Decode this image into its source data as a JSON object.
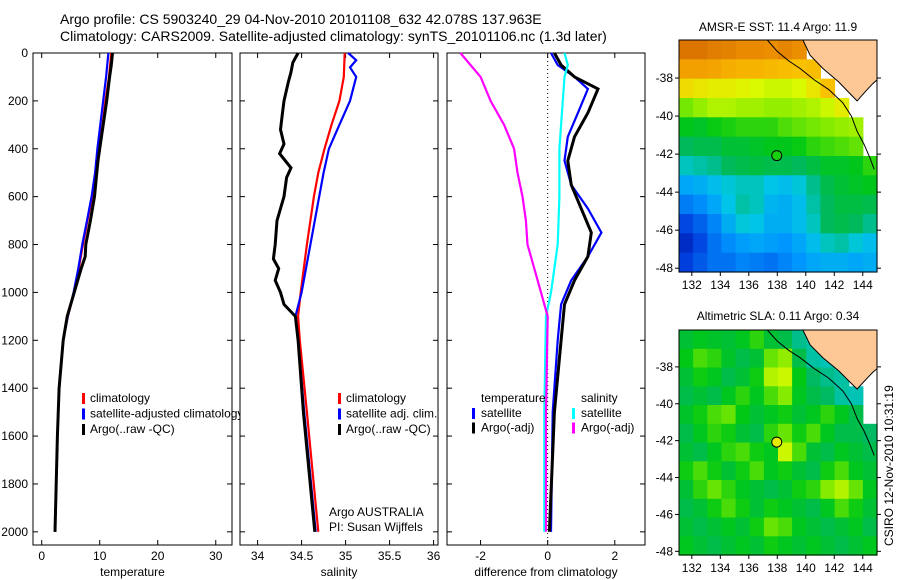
{
  "title_line1": "Argo profile: CS 5903240_29 04-Nov-2010 20101108_632 42.078S 137.963E",
  "title_line2": "Climatology: CARS2009. Satellite-adjusted climatology: synTS_20101106.nc (1.3d later)",
  "footer_stamp": "CSIRO 12-Nov-2010 10:31:19",
  "credit_line1": "Argo AUSTRALIA",
  "credit_line2": "PI: Susan Wijffels",
  "colors": {
    "climatology": "#ff0000",
    "satellite": "#0000ff",
    "argo": "#000000",
    "sal_satellite": "#00ffff",
    "sal_argo": "#ff00ff",
    "land": "#fdc896"
  },
  "chart_data": [
    {
      "type": "line",
      "xlabel": "temperature",
      "xlim": [
        -1.5,
        32.8
      ],
      "ylim": [
        0,
        2055
      ],
      "xticks": [
        0,
        10,
        20,
        30
      ],
      "yticks": [
        0,
        200,
        400,
        600,
        800,
        1000,
        1200,
        1400,
        1600,
        1800,
        2000
      ],
      "legend": {
        "placement": "lower-left",
        "entries": [
          "climatology",
          "satellite-adjusted climatology",
          "Argo(..raw -QC)"
        ]
      },
      "series": [
        {
          "name": "climatology",
          "color": "#ff0000",
          "depth": [
            0,
            100,
            200,
            300,
            400,
            500,
            600,
            700,
            800,
            900,
            1000,
            1100,
            1200,
            1400,
            1600,
            1800,
            2000
          ],
          "values": [
            12.0,
            11.6,
            11.0,
            10.5,
            9.9,
            9.3,
            8.7,
            7.9,
            7.1,
            6.4,
            5.6,
            4.5,
            3.7,
            3.0,
            2.7,
            2.5,
            2.3
          ]
        },
        {
          "name": "satellite-adjusted climatology",
          "color": "#0000ff",
          "depth": [
            0,
            100,
            200,
            300,
            400,
            500,
            600,
            700,
            800,
            900,
            1000,
            1100,
            1200,
            1400,
            1600,
            1800,
            2000
          ],
          "values": [
            11.5,
            11.1,
            10.6,
            10.1,
            9.6,
            9.2,
            8.6,
            7.8,
            7.0,
            6.3,
            5.5,
            4.5,
            3.7,
            3.0,
            2.7,
            2.5,
            2.3
          ]
        },
        {
          "name": "Argo(..raw -QC)",
          "color": "#000000",
          "depth": [
            0,
            50,
            100,
            200,
            300,
            400,
            450,
            500,
            600,
            700,
            800,
            850,
            900,
            1000,
            1100,
            1200,
            1400,
            1600,
            1800,
            2000
          ],
          "values": [
            12.2,
            12.0,
            11.7,
            11.2,
            10.6,
            10.0,
            9.7,
            9.5,
            9.1,
            8.4,
            7.6,
            7.5,
            6.8,
            5.6,
            4.4,
            3.7,
            3.0,
            2.7,
            2.5,
            2.3
          ]
        }
      ]
    },
    {
      "type": "line",
      "xlabel": "salinity",
      "xlim": [
        33.8,
        36.05
      ],
      "ylim": [
        0,
        2055
      ],
      "xticks": [
        34,
        34.5,
        35,
        35.5,
        36
      ],
      "legend": {
        "placement": "lower-right",
        "entries": [
          "climatology",
          "satellite adj. clim.",
          "Argo(..raw -QC)"
        ]
      },
      "series": [
        {
          "name": "climatology",
          "color": "#ff0000",
          "depth": [
            0,
            100,
            200,
            300,
            400,
            500,
            600,
            700,
            800,
            1000,
            1100,
            1200,
            1500,
            2000
          ],
          "values": [
            34.99,
            34.98,
            34.93,
            34.84,
            34.76,
            34.69,
            34.64,
            34.6,
            34.56,
            34.49,
            34.46,
            34.48,
            34.56,
            34.69
          ]
        },
        {
          "name": "satellite adj. clim.",
          "color": "#0000ff",
          "depth": [
            0,
            30,
            60,
            100,
            200,
            300,
            400,
            500,
            600,
            800,
            1000,
            1100,
            1200,
            1500,
            2000
          ],
          "values": [
            35.03,
            35.12,
            35.05,
            35.12,
            35.05,
            34.93,
            34.81,
            34.75,
            34.7,
            34.6,
            34.5,
            34.43,
            34.46,
            34.53,
            34.66
          ]
        },
        {
          "name": "Argo(..raw -QC)",
          "color": "#000000",
          "depth": [
            0,
            40,
            80,
            120,
            200,
            260,
            320,
            380,
            420,
            480,
            520,
            600,
            700,
            800,
            860,
            900,
            950,
            1000,
            1050,
            1100,
            1200,
            1500,
            2000
          ],
          "values": [
            34.46,
            34.4,
            34.38,
            34.35,
            34.3,
            34.28,
            34.26,
            34.3,
            34.25,
            34.38,
            34.33,
            34.3,
            34.22,
            34.2,
            34.18,
            34.24,
            34.2,
            34.26,
            34.3,
            34.43,
            34.46,
            34.52,
            34.65
          ]
        }
      ]
    },
    {
      "type": "line",
      "xlabel": "difference from climatology",
      "xlim": [
        -3,
        2.9
      ],
      "ylim": [
        0,
        2055
      ],
      "xticks": [
        -2,
        0,
        2
      ],
      "legend": {
        "placement": "lower-center",
        "headers": [
          "temperature",
          "salinity"
        ],
        "entries": [
          "satellite",
          "Argo(-adj)",
          "satellite",
          "Argo(-adj)"
        ]
      },
      "series": [
        {
          "name": "temperature satellite",
          "color": "#0000ff",
          "depth": [
            0,
            50,
            100,
            150,
            250,
            350,
            450,
            550,
            650,
            750,
            850,
            950,
            1050,
            1200,
            1500,
            2000
          ],
          "values": [
            0.1,
            0.3,
            0.8,
            1.2,
            0.9,
            0.6,
            0.5,
            0.7,
            1.2,
            1.6,
            1.2,
            0.7,
            0.4,
            0.3,
            0.15,
            0.1
          ]
        },
        {
          "name": "temperature Argo(-adj)",
          "color": "#000000",
          "depth": [
            0,
            50,
            100,
            150,
            250,
            350,
            450,
            550,
            650,
            750,
            850,
            950,
            1050,
            1200,
            1500,
            2000
          ],
          "values": [
            0.2,
            0.4,
            0.8,
            1.5,
            1.2,
            0.8,
            0.6,
            0.7,
            1.0,
            1.3,
            1.2,
            0.8,
            0.5,
            0.4,
            0.2,
            0.05
          ]
        },
        {
          "name": "salinity satellite",
          "color": "#00ffff",
          "depth": [
            0,
            50,
            100,
            200,
            300,
            400,
            600,
            800,
            1000,
            1100,
            1500,
            2000
          ],
          "values": [
            0.5,
            0.6,
            0.5,
            0.45,
            0.4,
            0.35,
            0.35,
            0.3,
            0.1,
            -0.05,
            -0.1,
            -0.1
          ]
        },
        {
          "name": "salinity Argo(-adj)",
          "color": "#ff00ff",
          "depth": [
            0,
            50,
            100,
            200,
            300,
            400,
            500,
            600,
            700,
            800,
            900,
            1000,
            1100,
            1500,
            2000
          ],
          "values": [
            -2.6,
            -2.3,
            -2.0,
            -1.7,
            -1.3,
            -1.0,
            -0.9,
            -0.75,
            -0.65,
            -0.6,
            -0.4,
            -0.2,
            0.0,
            -0.05,
            -0.05
          ]
        }
      ],
      "zero_line": 0
    },
    {
      "type": "heatmap",
      "title": "AMSR-E SST: 11.4 Argo: 11.9",
      "lon_range": [
        131.1,
        145.0
      ],
      "lat_range": [
        -36.0,
        -48.2
      ],
      "xticks": [
        132,
        134,
        136,
        138,
        140,
        142,
        144
      ],
      "yticks": [
        -38,
        -40,
        -42,
        -44,
        -46,
        -48
      ],
      "crange": [
        8,
        16
      ],
      "argo_value": 11.9,
      "argo_position": {
        "lon": 137.963,
        "lat": -42.078
      },
      "grid": [
        [
          15.6,
          15.6,
          15.4,
          15.3,
          15.1,
          15.1,
          15.0,
          15.2,
          15.0,
          null,
          null,
          null,
          null,
          null
        ],
        [
          14.6,
          14.6,
          14.5,
          14.3,
          14.2,
          14.2,
          14.1,
          14.0,
          13.9,
          14.0,
          null,
          null,
          null,
          null
        ],
        [
          13.5,
          13.4,
          13.3,
          13.3,
          13.2,
          13.1,
          13.0,
          13.0,
          13.1,
          13.4,
          13.9,
          null,
          null,
          null
        ],
        [
          12.4,
          12.6,
          12.8,
          12.8,
          12.7,
          12.7,
          12.6,
          12.6,
          12.7,
          12.8,
          13.0,
          13.3,
          null,
          null
        ],
        [
          11.7,
          11.6,
          11.8,
          11.9,
          12.0,
          12.0,
          12.0,
          12.2,
          12.3,
          12.4,
          12.5,
          12.6,
          12.7,
          null
        ],
        [
          11.2,
          11.3,
          11.3,
          11.5,
          11.5,
          11.6,
          11.7,
          11.7,
          11.8,
          12.0,
          12.1,
          12.2,
          12.3,
          null
        ],
        [
          10.8,
          10.9,
          11.0,
          11.2,
          11.3,
          11.4,
          11.3,
          11.3,
          11.2,
          11.4,
          11.6,
          11.6,
          11.7,
          12.0
        ],
        [
          10.2,
          10.3,
          10.5,
          10.7,
          10.8,
          10.8,
          10.6,
          10.5,
          10.7,
          11.0,
          11.3,
          11.5,
          11.6,
          11.7
        ],
        [
          9.7,
          9.9,
          10.2,
          10.6,
          10.9,
          10.8,
          10.4,
          10.3,
          10.5,
          10.9,
          11.2,
          11.4,
          11.4,
          11.3
        ],
        [
          9.1,
          9.4,
          9.8,
          10.3,
          10.7,
          10.6,
          10.3,
          10.3,
          10.5,
          10.8,
          11.2,
          11.3,
          11.2,
          11.0
        ],
        [
          8.7,
          9.1,
          9.6,
          9.9,
          10.1,
          10.2,
          10.1,
          10.0,
          10.2,
          10.5,
          10.8,
          10.9,
          10.7,
          10.5
        ],
        [
          9.0,
          9.3,
          9.6,
          9.6,
          9.8,
          9.7,
          9.6,
          9.8,
          10.0,
          10.2,
          10.3,
          10.3,
          10.2,
          10.3
        ]
      ]
    },
    {
      "type": "heatmap",
      "title": "Altimetric SLA: 0.11 Argo: 0.34",
      "lon_range": [
        131.1,
        145.0
      ],
      "lat_range": [
        -36.0,
        -48.2
      ],
      "xticks": [
        132,
        134,
        136,
        138,
        140,
        142,
        144
      ],
      "yticks": [
        -38,
        -40,
        -42,
        -44,
        -46,
        -48
      ],
      "crange": [
        -0.3,
        0.66
      ],
      "argo_value": 0.34,
      "argo_position": {
        "lon": 137.963,
        "lat": -42.078
      },
      "grid": [
        [
          0.12,
          0.14,
          0.13,
          0.12,
          0.14,
          0.18,
          0.12,
          0.1,
          0.06,
          0.05,
          null,
          null,
          null,
          null
        ],
        [
          0.15,
          0.2,
          0.18,
          0.13,
          0.1,
          0.12,
          0.22,
          0.25,
          0.1,
          0.05,
          0.04,
          null,
          null,
          null
        ],
        [
          0.12,
          0.16,
          0.14,
          0.1,
          0.12,
          0.16,
          0.28,
          0.3,
          0.15,
          0.08,
          0.06,
          0.05,
          null,
          null
        ],
        [
          0.1,
          0.12,
          0.1,
          0.14,
          0.18,
          0.14,
          0.2,
          0.24,
          0.14,
          0.1,
          0.08,
          0.05,
          0.04,
          null
        ],
        [
          0.13,
          0.16,
          0.2,
          0.22,
          0.15,
          0.12,
          0.14,
          0.16,
          0.12,
          0.14,
          0.18,
          0.14,
          0.1,
          null
        ],
        [
          0.1,
          0.14,
          0.18,
          0.16,
          0.12,
          0.1,
          0.18,
          0.22,
          0.16,
          0.2,
          0.14,
          0.1,
          0.1,
          0.08
        ],
        [
          0.12,
          0.1,
          0.14,
          0.18,
          0.2,
          0.16,
          0.14,
          0.3,
          0.2,
          0.12,
          0.1,
          0.14,
          0.12,
          0.1
        ],
        [
          0.16,
          0.2,
          0.16,
          0.12,
          0.16,
          0.2,
          0.14,
          0.16,
          0.12,
          0.1,
          0.16,
          0.2,
          0.14,
          0.12
        ],
        [
          0.12,
          0.18,
          0.22,
          0.18,
          0.14,
          0.12,
          0.1,
          0.12,
          0.16,
          0.18,
          0.24,
          0.28,
          0.22,
          0.14
        ],
        [
          0.1,
          0.12,
          0.16,
          0.2,
          0.16,
          0.12,
          0.16,
          0.14,
          0.12,
          0.1,
          0.14,
          0.2,
          0.16,
          0.12
        ],
        [
          0.12,
          0.1,
          0.12,
          0.14,
          0.12,
          0.16,
          0.22,
          0.2,
          0.14,
          0.12,
          0.1,
          0.12,
          0.14,
          0.1
        ],
        [
          0.14,
          0.12,
          0.1,
          0.12,
          0.14,
          0.12,
          0.16,
          0.14,
          0.12,
          0.14,
          0.12,
          0.1,
          0.12,
          0.14
        ]
      ]
    }
  ],
  "land_polygon": [
    [
      139.8,
      -36.0
    ],
    [
      140.3,
      -36.8
    ],
    [
      141.2,
      -37.5
    ],
    [
      142.3,
      -38.2
    ],
    [
      143.2,
      -38.9
    ],
    [
      143.6,
      -39.2
    ],
    [
      144.2,
      -38.7
    ],
    [
      144.7,
      -38.3
    ],
    [
      145.0,
      -38.1
    ],
    [
      145.0,
      -36.0
    ]
  ],
  "coastline": [
    [
      137.3,
      -36.0
    ],
    [
      138.0,
      -36.6
    ],
    [
      138.8,
      -37.1
    ],
    [
      139.6,
      -37.5
    ],
    [
      140.6,
      -38.1
    ],
    [
      141.6,
      -38.6
    ],
    [
      142.6,
      -39.3
    ],
    [
      143.2,
      -40.0
    ],
    [
      143.6,
      -40.8
    ],
    [
      144.1,
      -41.5
    ],
    [
      144.5,
      -42.2
    ],
    [
      144.8,
      -42.8
    ]
  ]
}
